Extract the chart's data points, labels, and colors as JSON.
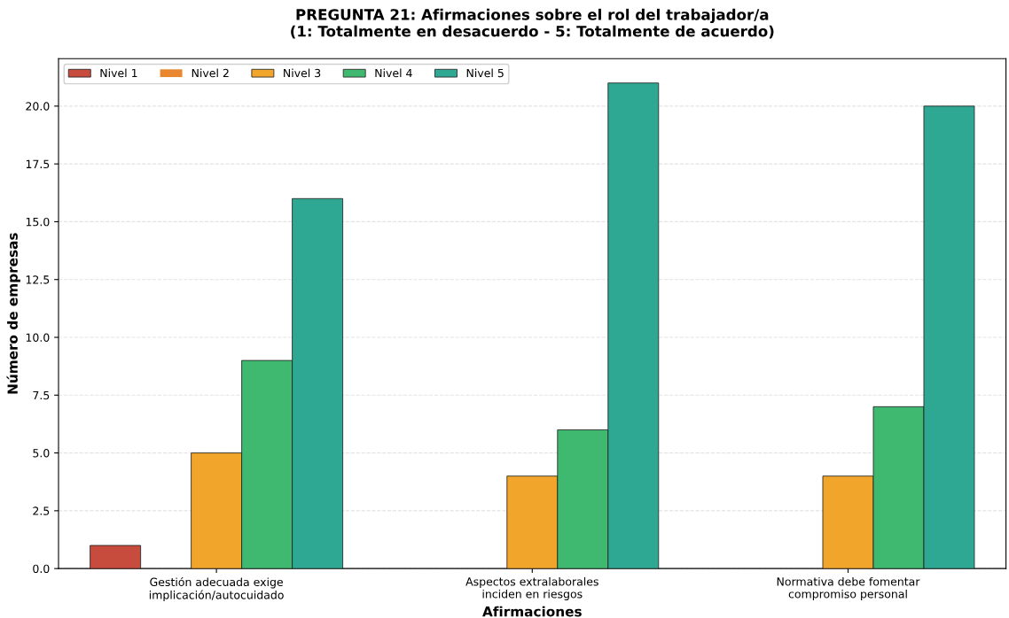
{
  "chart_data": {
    "type": "bar",
    "title": "PREGUNTA 21: Afirmaciones sobre el rol del trabajador/a\n(1: Totalmente en desacuerdo - 5: Totalmente de acuerdo)",
    "xlabel": "Afirmaciones",
    "ylabel": "Número de empresas",
    "categories": [
      "Gestión adecuada exige\nimplicación/autocuidado",
      "Aspectos extralaborales\ninciden en riesgos",
      "Normativa debe fomentar\ncompromiso personal"
    ],
    "series": [
      {
        "name": "Nivel 1",
        "color": "#c84c3e",
        "values": [
          1,
          0,
          0
        ]
      },
      {
        "name": "Nivel 2",
        "color": "#e8872f",
        "values": [
          0,
          0,
          0
        ]
      },
      {
        "name": "Nivel 3",
        "color": "#f2a52b",
        "values": [
          5,
          4,
          4
        ]
      },
      {
        "name": "Nivel 4",
        "color": "#3fb970",
        "values": [
          9,
          6,
          7
        ]
      },
      {
        "name": "Nivel 5",
        "color": "#2ea892",
        "values": [
          16,
          21,
          20
        ]
      }
    ],
    "ylim": [
      0,
      22.05
    ],
    "yticks": [
      {
        "value": 0,
        "label": "0.0"
      },
      {
        "value": 2.5,
        "label": "2.5"
      },
      {
        "value": 5,
        "label": "5.0"
      },
      {
        "value": 7.5,
        "label": "7.5"
      },
      {
        "value": 10,
        "label": "10.0"
      },
      {
        "value": 12.5,
        "label": "12.5"
      },
      {
        "value": 15,
        "label": "15.0"
      },
      {
        "value": 17.5,
        "label": "17.5"
      },
      {
        "value": 20,
        "label": "20.0"
      }
    ],
    "grid": "y",
    "legend": "top left"
  }
}
